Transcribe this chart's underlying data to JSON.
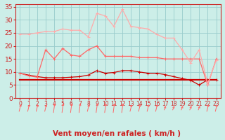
{
  "title": "",
  "xlabel": "Vent moyen/en rafales ( km/h )",
  "background_color": "#cceee8",
  "grid_color": "#99cccc",
  "x": [
    0,
    1,
    2,
    3,
    4,
    5,
    6,
    7,
    8,
    9,
    10,
    11,
    12,
    13,
    14,
    15,
    16,
    17,
    18,
    19,
    20,
    21,
    22,
    23
  ],
  "series": [
    {
      "label": "dark_red_marker",
      "color": "#cc0000",
      "linewidth": 0.9,
      "marker": "+",
      "markersize": 3.5,
      "values": [
        9.5,
        8.8,
        8.2,
        7.8,
        7.8,
        7.8,
        8.0,
        8.2,
        8.8,
        10.5,
        9.5,
        9.8,
        10.5,
        10.5,
        10.0,
        9.5,
        9.5,
        9.0,
        8.2,
        7.5,
        6.8,
        5.0,
        7.0,
        7.0
      ]
    },
    {
      "label": "dark_red_flat",
      "color": "#cc0000",
      "linewidth": 1.6,
      "marker": null,
      "values": [
        7.0,
        7.0,
        7.0,
        7.0,
        7.0,
        7.0,
        7.0,
        7.0,
        7.0,
        7.0,
        7.0,
        7.0,
        7.0,
        7.0,
        7.0,
        7.0,
        7.0,
        7.0,
        7.0,
        7.0,
        7.0,
        7.0,
        7.0,
        7.0
      ]
    },
    {
      "label": "medium_red",
      "color": "#ff6666",
      "linewidth": 0.9,
      "marker": "+",
      "markersize": 3.5,
      "values": [
        9.5,
        8.5,
        8.0,
        18.5,
        15.0,
        19.0,
        16.5,
        16.0,
        18.5,
        20.0,
        16.0,
        16.0,
        16.0,
        16.0,
        15.5,
        15.5,
        15.5,
        15.0,
        15.0,
        15.0,
        15.0,
        15.0,
        5.0,
        15.0
      ]
    },
    {
      "label": "light_red",
      "color": "#ffaaaa",
      "linewidth": 0.9,
      "marker": "+",
      "markersize": 3.5,
      "values": [
        24.5,
        24.5,
        25.0,
        25.5,
        25.5,
        26.5,
        26.0,
        26.0,
        23.5,
        32.5,
        31.5,
        27.5,
        34.0,
        27.5,
        27.0,
        26.5,
        24.5,
        23.0,
        23.0,
        18.5,
        13.5,
        18.5,
        5.5,
        14.5
      ]
    }
  ],
  "ylim": [
    0,
    36
  ],
  "yticks": [
    0,
    5,
    10,
    15,
    20,
    25,
    30,
    35
  ],
  "xlim": [
    -0.5,
    23.5
  ],
  "xticks": [
    0,
    1,
    2,
    3,
    4,
    5,
    6,
    7,
    8,
    9,
    10,
    11,
    12,
    13,
    14,
    15,
    16,
    17,
    18,
    19,
    20,
    21,
    22,
    23
  ],
  "xlabel_fontsize": 7.5,
  "ytick_fontsize": 6.5,
  "xtick_fontsize": 5.5,
  "tick_color": "#cc2222",
  "spine_color": "#cc2222",
  "arrow_color": "#ff6666",
  "arrow_angles": [
    45,
    45,
    45,
    45,
    60,
    60,
    60,
    60,
    45,
    60,
    60,
    60,
    60,
    45,
    45,
    45,
    45,
    30,
    30,
    30,
    30,
    30,
    45,
    45
  ]
}
